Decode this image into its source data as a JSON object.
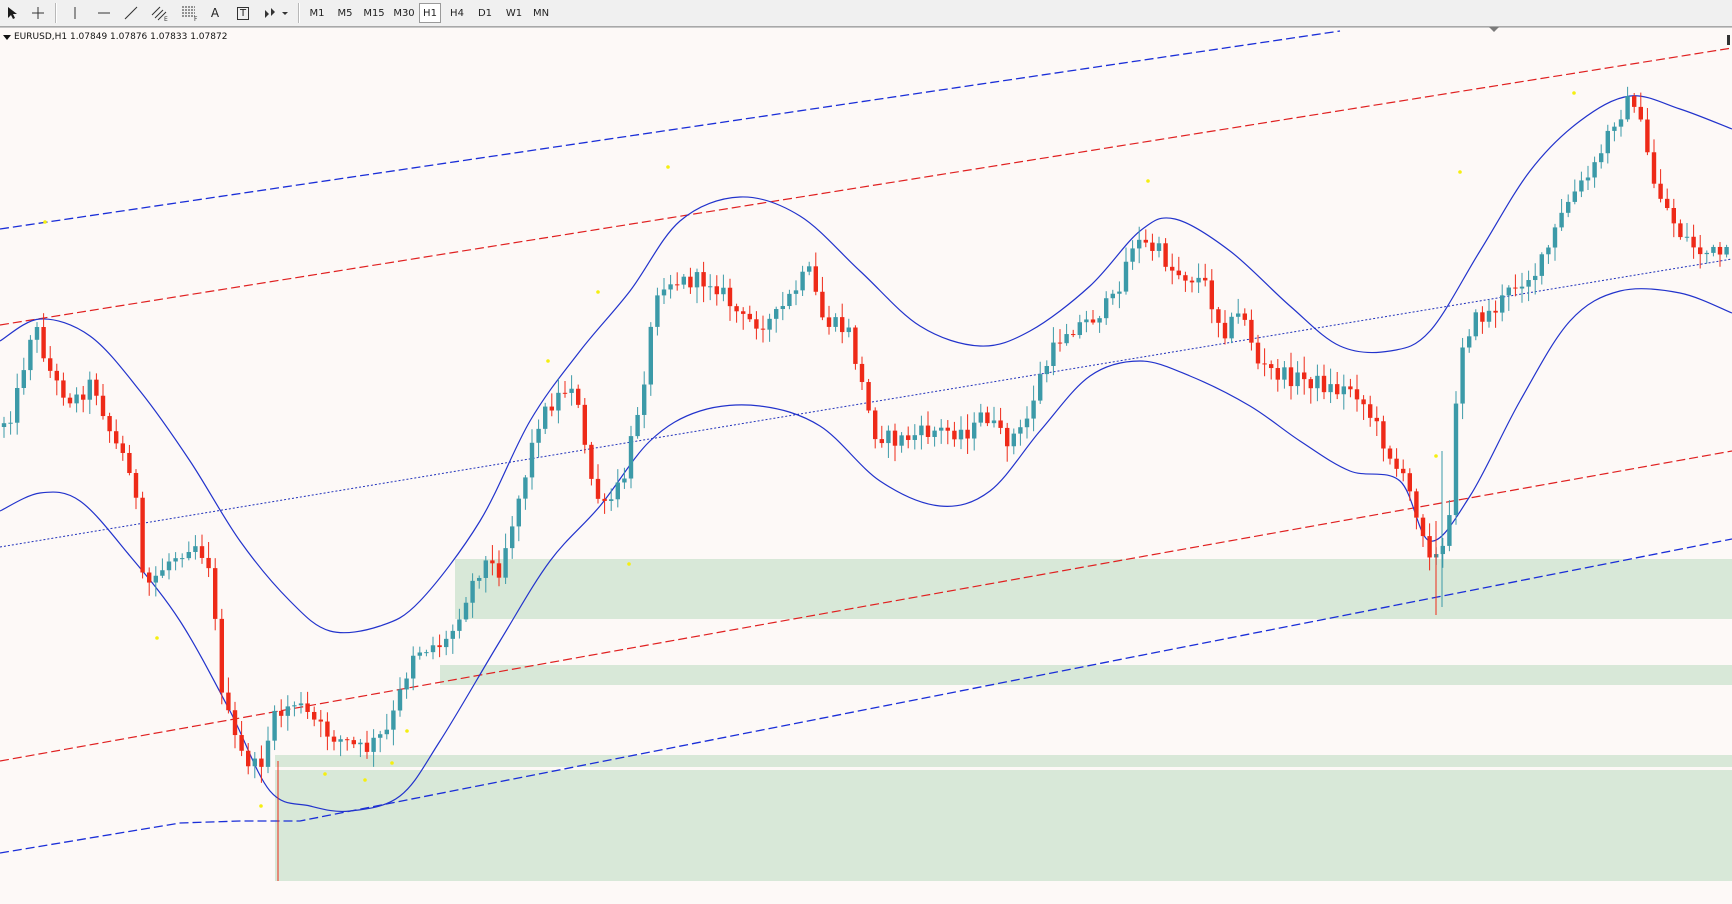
{
  "toolbar": {
    "tools": [
      {
        "name": "cursor",
        "icon": "cursor-icon"
      },
      {
        "name": "crosshair",
        "icon": "crosshair-icon"
      },
      {
        "name": "vertical-line",
        "icon": "vertical-line-icon"
      },
      {
        "name": "horizontal-line",
        "icon": "horizontal-line-icon"
      },
      {
        "name": "trendline",
        "icon": "trendline-icon"
      },
      {
        "name": "equidistant-channel",
        "icon": "equidistant-channel-icon",
        "sub": "E"
      },
      {
        "name": "fibonacci",
        "icon": "fibonacci-icon",
        "sub": "F"
      },
      {
        "name": "text",
        "icon": "text-icon",
        "label": "A"
      },
      {
        "name": "text-label",
        "icon": "text-label-icon",
        "label": "T"
      },
      {
        "name": "arrows",
        "icon": "arrows-icon"
      }
    ],
    "timeframes": [
      "M1",
      "M5",
      "M15",
      "M30",
      "H1",
      "H4",
      "D1",
      "W1",
      "MN"
    ],
    "active_timeframe": "H1"
  },
  "chart": {
    "symbol_info": "EURUSD,H1  1.07849 1.07876 1.07833 1.07872",
    "bull_color": "#3c9aa8",
    "bear_color": "#ee2a18",
    "band_color": "#2233cc",
    "channel_red": "#e02020",
    "channel_blue": "#1a2ed8",
    "zone_color": "#d8e8d8",
    "dot_color": "#f5ef10"
  }
}
